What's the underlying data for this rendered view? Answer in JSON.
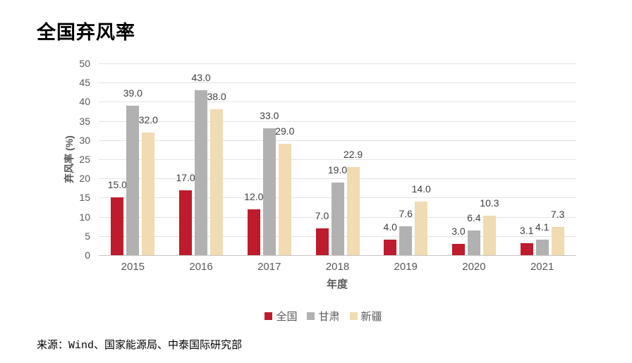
{
  "page": {
    "title": "全国弃风率",
    "source": "来源：Wind、国家能源局、中泰国际研究部"
  },
  "chart_data": {
    "type": "bar",
    "title": "全国弃风率",
    "categories": [
      "2015",
      "2016",
      "2017",
      "2018",
      "2019",
      "2020",
      "2021"
    ],
    "series": [
      {
        "name": "全国",
        "color": "#BE1B2D",
        "values": [
          15.0,
          17.0,
          12.0,
          7.0,
          4.0,
          3.0,
          3.1
        ]
      },
      {
        "name": "甘肃",
        "color": "#B1B1B1",
        "values": [
          39.0,
          43.0,
          33.0,
          19.0,
          7.6,
          6.4,
          4.1
        ]
      },
      {
        "name": "新疆",
        "color": "#F0DBB2",
        "values": [
          32.0,
          38.0,
          29.0,
          22.9,
          14.0,
          10.3,
          7.3
        ]
      }
    ],
    "xlabel": "年度",
    "ylabel": "弃风率 (%)",
    "ylim": [
      0,
      50
    ],
    "yticks": [
      0,
      5,
      10,
      15,
      20,
      25,
      30,
      35,
      40,
      45,
      50
    ],
    "grid": true,
    "legend_position": "bottom",
    "value_decimals": 1,
    "colors": {
      "grid": "#E3E3E3",
      "axis": "#C6C6C6",
      "tick_text": "#595959",
      "value_label_text": "#404040"
    }
  }
}
